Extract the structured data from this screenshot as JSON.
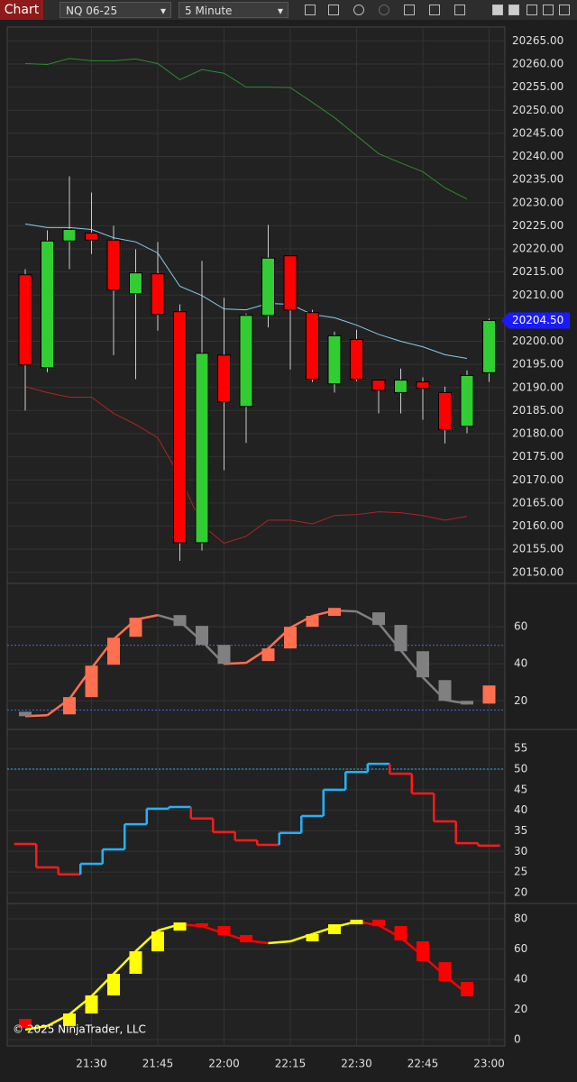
{
  "toolbar": {
    "tab": "Chart",
    "instrument": "NQ 06-25",
    "interval": "5 Minute"
  },
  "copyright": "© 2025 NinjaTrader, LLC",
  "time_axis": {
    "categories": [
      null,
      null,
      null,
      "21:30",
      null,
      null,
      "21:45",
      null,
      null,
      "22:00",
      null,
      null,
      "22:15",
      null,
      null,
      "22:30",
      null,
      null,
      "22:45",
      null,
      null,
      "23:00"
    ]
  },
  "chart_data": [
    {
      "type": "candlestick",
      "open": [
        20214.4,
        20194.3,
        20221.7,
        20223.4,
        20221.9,
        20210.3,
        20214.6,
        20206.4,
        20156.4,
        20197,
        20185.9,
        20205.6,
        20218.5,
        20206.2,
        20190.8,
        20200.4,
        20191.6,
        20188.9,
        20191.2,
        20188.9,
        20181.6,
        20193.2
      ],
      "high": [
        20215.6,
        20224,
        20235.7,
        20232.2,
        20225,
        20219.9,
        20221.5,
        20208,
        20217.4,
        20209.4,
        20206,
        20225.2,
        20218.5,
        20206.8,
        20202.1,
        20202.5,
        20191.6,
        20194.1,
        20192.2,
        20190.2,
        20193.7,
        20204.9
      ],
      "low": [
        20185,
        20193.3,
        20215.6,
        20218.9,
        20197,
        20191.8,
        20202.3,
        20152.5,
        20154.7,
        20172.1,
        20178,
        20203,
        20193.9,
        20191.2,
        20188.9,
        20191.4,
        20184.4,
        20184.4,
        20183,
        20177.9,
        20180.1,
        20191.2
      ],
      "close": [
        20194.9,
        20221.7,
        20224.2,
        20221.9,
        20211.1,
        20214.8,
        20205.8,
        20156.4,
        20197.4,
        20186.9,
        20205.6,
        20218,
        20206.8,
        20191.8,
        20201.2,
        20191.8,
        20189.4,
        20191.6,
        20189.8,
        20180.9,
        20192.6,
        20204.5
      ],
      "up_color": "#32cd32",
      "down_color": "#ff0000",
      "series": [
        {
          "color": "#2e8b2e",
          "values": [
            20260.1,
            20259.9,
            20261.2,
            20260.7,
            20260.7,
            20261.1,
            20260.1,
            20256.6,
            20258.8,
            20258,
            20255,
            20255,
            20254.9,
            20251.7,
            20248.4,
            20244.5,
            20240.6,
            20238.6,
            20236.7,
            20233.2,
            20230.8,
            null
          ]
        },
        {
          "color": "#87ceeb",
          "values": [
            20225.4,
            20224.6,
            20224.6,
            20224.2,
            20222.4,
            20221.5,
            20219.1,
            20211.9,
            20209.9,
            20207,
            20206.8,
            20208.2,
            20208,
            20205.8,
            20205.1,
            20203.5,
            20201.5,
            20200,
            20198.8,
            20197.1,
            20196.3,
            null
          ]
        },
        {
          "color": "#b22222",
          "values": [
            20190.2,
            20188.9,
            20187.9,
            20187.9,
            20184.4,
            20182,
            20179.1,
            20170.7,
            20160.2,
            20156.3,
            20157.8,
            20161.3,
            20161.3,
            20160.5,
            20162.3,
            20162.5,
            20163.1,
            20162.9,
            20162.3,
            20161.3,
            20162.1,
            null
          ]
        }
      ],
      "ylim": [
        20148,
        20268
      ],
      "yticks": [
        {
          "value": 20150,
          "label": "20150.00"
        },
        {
          "value": 20155,
          "label": "20155.00"
        },
        {
          "value": 20160,
          "label": "20160.00"
        },
        {
          "value": 20165,
          "label": "20165.00"
        },
        {
          "value": 20170,
          "label": "20170.00"
        },
        {
          "value": 20175,
          "label": "20175.00"
        },
        {
          "value": 20180,
          "label": "20180.00"
        },
        {
          "value": 20185,
          "label": "20185.00"
        },
        {
          "value": 20190,
          "label": "20190.00"
        },
        {
          "value": 20195,
          "label": "20195.00"
        },
        {
          "value": 20200,
          "label": "20200.00"
        },
        {
          "value": 20205,
          "label": "20205.00"
        },
        {
          "value": 20210,
          "label": "20210.00"
        },
        {
          "value": 20215,
          "label": "20215.00"
        },
        {
          "value": 20220,
          "label": "20220.00"
        },
        {
          "value": 20225,
          "label": "20225.00"
        },
        {
          "value": 20230,
          "label": "20230.00"
        },
        {
          "value": 20235,
          "label": "20235.00"
        },
        {
          "value": 20240,
          "label": "20240.00"
        },
        {
          "value": 20245,
          "label": "20245.00"
        },
        {
          "value": 20250,
          "label": "20250.00"
        },
        {
          "value": 20255,
          "label": "20255.00"
        },
        {
          "value": 20260,
          "label": "20260.00"
        },
        {
          "value": 20265,
          "label": "20265.00"
        }
      ],
      "last_price": {
        "value": 20204.5,
        "label": "20204.50"
      },
      "last_color": "#1a1aff"
    },
    {
      "type": "oscillator",
      "values": [
        11.7,
        12.2,
        21,
        37.6,
        53.2,
        63.9,
        66.3,
        62.9,
        52.2,
        40,
        40.5,
        48.3,
        59.5,
        65.9,
        68.8,
        68.3,
        62,
        47.3,
        32.7,
        20.5,
        18.5,
        null
      ],
      "box_from": [
        14.1,
        null,
        12.7,
        22,
        39.5,
        54.6,
        null,
        66.3,
        60.5,
        50.2,
        null,
        41.5,
        48.3,
        60,
        65.9,
        null,
        67.8,
        61,
        46.8,
        31.2,
        20,
        18.5
      ],
      "box_to": [
        11.7,
        null,
        22,
        39,
        54.1,
        64.9,
        null,
        60.5,
        50.2,
        40,
        null,
        48.3,
        60,
        65.9,
        70.2,
        null,
        61,
        46.8,
        32.7,
        20,
        18,
        28.3
      ],
      "up_color": "#ff6f50",
      "down_color": "#808080",
      "ylim": [
        6,
        82
      ],
      "yticks": [
        20,
        40,
        60
      ],
      "levels": [
        50,
        15
      ],
      "level_color": "#4169e1"
    },
    {
      "type": "step",
      "values": [
        31.8,
        26.1,
        24.4,
        27,
        30.5,
        36.6,
        40.4,
        40.8,
        38,
        34.7,
        32.7,
        31.6,
        34.5,
        38.6,
        45,
        49.3,
        51.3,
        48.9,
        44.1,
        37.3,
        32,
        31.4
      ],
      "up_color": "#1eb4ff",
      "down_color": "#ff1a1a",
      "ylim": [
        18,
        59
      ],
      "yticks": [
        20,
        25,
        30,
        35,
        40,
        45,
        50,
        55
      ],
      "levels": [
        50
      ],
      "level_color": "#1eb4ff"
    },
    {
      "type": "oscillator",
      "values": [
        6.6,
        9,
        16.7,
        28.7,
        43.6,
        58.5,
        72.2,
        76.4,
        75.2,
        70.4,
        65.7,
        63.9,
        65.1,
        69.9,
        74.6,
        78.2,
        75.8,
        67.5,
        55.5,
        42.4,
        30.4,
        null
      ],
      "box_from": [
        13.7,
        null,
        9,
        17.3,
        29.3,
        43.6,
        58.5,
        72.2,
        77,
        75.2,
        69.3,
        null,
        null,
        65.1,
        69.9,
        76.4,
        79.4,
        75.2,
        65.1,
        51.3,
        38.2,
        null
      ],
      "box_to": [
        7.8,
        null,
        17.3,
        29.3,
        43.6,
        58.5,
        71.6,
        77.6,
        75.2,
        69.3,
        64.5,
        null,
        null,
        69.9,
        76.4,
        79.4,
        75.2,
        65.7,
        51.9,
        38.8,
        28.7,
        null
      ],
      "up_color": "#ffff00",
      "down_color": "#ff0000",
      "ylim": [
        -4.2,
        88.4
      ],
      "yticks": [
        0,
        20,
        40,
        60,
        80
      ],
      "levels": [],
      "level_color": "#ffffff"
    }
  ]
}
